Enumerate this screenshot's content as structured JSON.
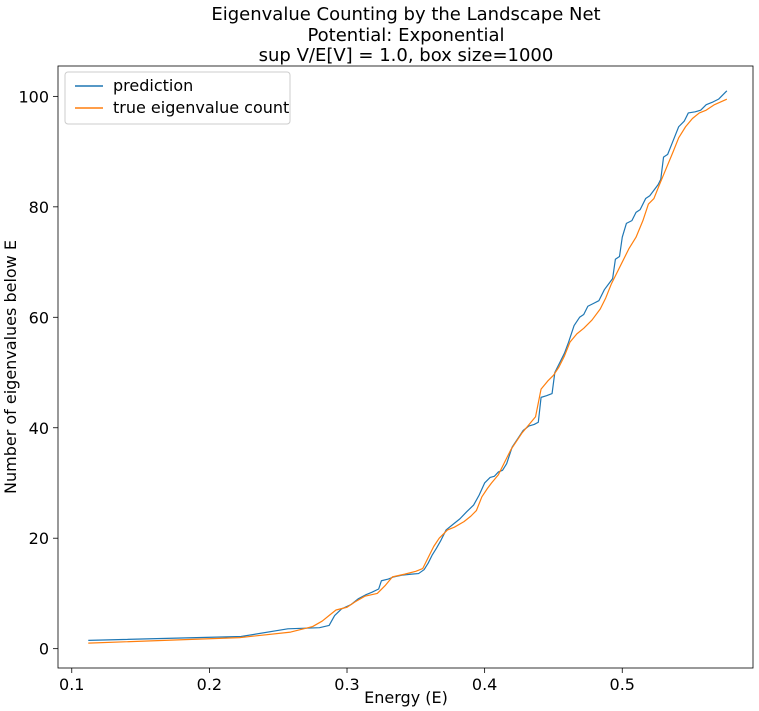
{
  "chart_data": {
    "type": "line",
    "title": [
      "Eigenvalue Counting by the Landscape Net",
      "Potential: Exponential",
      "sup V/E[V] = 1.0, box size=1000"
    ],
    "xlabel": "Energy (E)",
    "ylabel": "Number of eigenvalues below E",
    "xlim": [
      0.09,
      0.595
    ],
    "ylim": [
      -3.5,
      105.5
    ],
    "xticks": [
      0.1,
      0.2,
      0.3,
      0.4,
      0.5
    ],
    "xtick_labels": [
      "0.1",
      "0.2",
      "0.3",
      "0.4",
      "0.5"
    ],
    "yticks": [
      0,
      20,
      40,
      60,
      80,
      100
    ],
    "ytick_labels": [
      "0",
      "20",
      "40",
      "60",
      "80",
      "100"
    ],
    "grid": false,
    "legend_position": "top-left",
    "series": [
      {
        "name": "prediction",
        "color": "#1f77b4",
        "points": [
          [
            0.112,
            1.5
          ],
          [
            0.223,
            2.2
          ],
          [
            0.257,
            3.6
          ],
          [
            0.28,
            3.8
          ],
          [
            0.287,
            4.2
          ],
          [
            0.291,
            6.0
          ],
          [
            0.296,
            7.2
          ],
          [
            0.303,
            8.0
          ],
          [
            0.308,
            9.0
          ],
          [
            0.314,
            9.8
          ],
          [
            0.318,
            10.2
          ],
          [
            0.323,
            10.8
          ],
          [
            0.325,
            12.3
          ],
          [
            0.33,
            12.6
          ],
          [
            0.334,
            13.0
          ],
          [
            0.34,
            13.3
          ],
          [
            0.347,
            13.5
          ],
          [
            0.352,
            13.6
          ],
          [
            0.356,
            14.3
          ],
          [
            0.359,
            15.5
          ],
          [
            0.362,
            17.0
          ],
          [
            0.365,
            18.2
          ],
          [
            0.368,
            19.5
          ],
          [
            0.372,
            21.5
          ],
          [
            0.377,
            22.5
          ],
          [
            0.382,
            23.5
          ],
          [
            0.387,
            24.8
          ],
          [
            0.392,
            26.0
          ],
          [
            0.396,
            27.8
          ],
          [
            0.4,
            30.0
          ],
          [
            0.404,
            31.0
          ],
          [
            0.407,
            31.2
          ],
          [
            0.41,
            32.0
          ],
          [
            0.413,
            32.3
          ],
          [
            0.416,
            33.5
          ],
          [
            0.42,
            36.5
          ],
          [
            0.424,
            38.0
          ],
          [
            0.428,
            39.5
          ],
          [
            0.432,
            40.3
          ],
          [
            0.436,
            40.6
          ],
          [
            0.439,
            41.0
          ],
          [
            0.441,
            45.5
          ],
          [
            0.445,
            45.8
          ],
          [
            0.449,
            46.2
          ],
          [
            0.451,
            50.0
          ],
          [
            0.455,
            52.0
          ],
          [
            0.458,
            53.5
          ],
          [
            0.461,
            55.5
          ],
          [
            0.465,
            58.5
          ],
          [
            0.469,
            60.0
          ],
          [
            0.472,
            60.5
          ],
          [
            0.475,
            62.0
          ],
          [
            0.479,
            62.5
          ],
          [
            0.483,
            63.0
          ],
          [
            0.487,
            65.0
          ],
          [
            0.49,
            66.0
          ],
          [
            0.493,
            67.0
          ],
          [
            0.495,
            70.5
          ],
          [
            0.498,
            71.0
          ],
          [
            0.5,
            74.5
          ],
          [
            0.503,
            77.0
          ],
          [
            0.507,
            77.5
          ],
          [
            0.51,
            79.0
          ],
          [
            0.513,
            79.5
          ],
          [
            0.517,
            81.5
          ],
          [
            0.52,
            82.0
          ],
          [
            0.523,
            83.0
          ],
          [
            0.526,
            84.0
          ],
          [
            0.528,
            85.0
          ],
          [
            0.53,
            89.0
          ],
          [
            0.533,
            89.5
          ],
          [
            0.537,
            92.0
          ],
          [
            0.541,
            94.5
          ],
          [
            0.545,
            95.5
          ],
          [
            0.548,
            97.0
          ],
          [
            0.553,
            97.2
          ],
          [
            0.557,
            97.5
          ],
          [
            0.561,
            98.5
          ],
          [
            0.566,
            99.0
          ],
          [
            0.57,
            99.5
          ],
          [
            0.576,
            101.0
          ]
        ]
      },
      {
        "name": "true eigenvalue count",
        "color": "#ff7f0e",
        "points": [
          [
            0.112,
            1.0
          ],
          [
            0.222,
            2.0
          ],
          [
            0.259,
            3.0
          ],
          [
            0.275,
            4.0
          ],
          [
            0.282,
            5.0
          ],
          [
            0.287,
            6.0
          ],
          [
            0.292,
            7.0
          ],
          [
            0.3,
            7.5
          ],
          [
            0.306,
            8.5
          ],
          [
            0.313,
            9.5
          ],
          [
            0.322,
            10.0
          ],
          [
            0.328,
            11.5
          ],
          [
            0.333,
            13.0
          ],
          [
            0.342,
            13.5
          ],
          [
            0.35,
            14.0
          ],
          [
            0.355,
            14.5
          ],
          [
            0.359,
            16.5
          ],
          [
            0.363,
            18.5
          ],
          [
            0.367,
            20.0
          ],
          [
            0.373,
            21.5
          ],
          [
            0.378,
            22.0
          ],
          [
            0.385,
            23.0
          ],
          [
            0.39,
            24.0
          ],
          [
            0.394,
            25.0
          ],
          [
            0.398,
            27.5
          ],
          [
            0.402,
            29.0
          ],
          [
            0.405,
            30.0
          ],
          [
            0.41,
            31.5
          ],
          [
            0.415,
            34.0
          ],
          [
            0.419,
            36.0
          ],
          [
            0.423,
            37.5
          ],
          [
            0.427,
            39.0
          ],
          [
            0.432,
            40.5
          ],
          [
            0.437,
            42.0
          ],
          [
            0.441,
            47.0
          ],
          [
            0.446,
            48.5
          ],
          [
            0.45,
            49.5
          ],
          [
            0.454,
            51.0
          ],
          [
            0.458,
            53.0
          ],
          [
            0.462,
            55.5
          ],
          [
            0.467,
            57.0
          ],
          [
            0.472,
            58.0
          ],
          [
            0.478,
            59.5
          ],
          [
            0.484,
            61.5
          ],
          [
            0.488,
            63.5
          ],
          [
            0.492,
            66.0
          ],
          [
            0.496,
            68.0
          ],
          [
            0.5,
            70.0
          ],
          [
            0.505,
            72.5
          ],
          [
            0.51,
            74.5
          ],
          [
            0.515,
            77.5
          ],
          [
            0.519,
            80.5
          ],
          [
            0.523,
            81.5
          ],
          [
            0.527,
            84.0
          ],
          [
            0.532,
            87.0
          ],
          [
            0.537,
            90.0
          ],
          [
            0.541,
            92.5
          ],
          [
            0.546,
            94.5
          ],
          [
            0.551,
            96.0
          ],
          [
            0.556,
            97.0
          ],
          [
            0.561,
            97.5
          ],
          [
            0.567,
            98.5
          ],
          [
            0.576,
            99.5
          ]
        ]
      }
    ]
  }
}
